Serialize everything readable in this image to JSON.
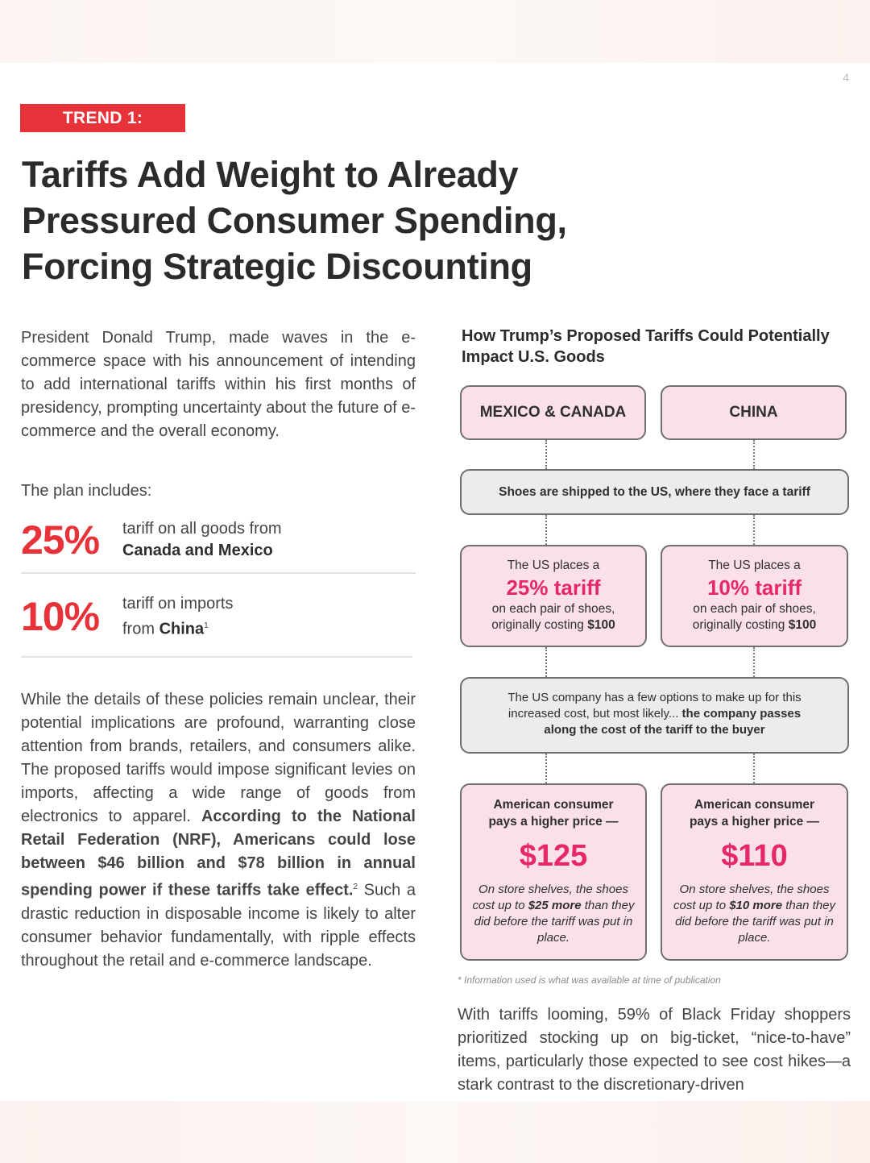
{
  "page_number": "4",
  "badge": "TREND 1:",
  "headline": {
    "line1": "Tariffs Add Weight to Already",
    "line2": "Pressured Consumer Spending,",
    "line3": "Forcing Strategic Discounting"
  },
  "intro": "President Donald Trump, made waves in the e-commerce space with his announcement of intending to add international tariffs within his first months of presidency, prompting uncertainty about the future of e-commerce and the overall economy.",
  "plan_label": "The plan includes:",
  "stats": [
    {
      "value": "25%",
      "text_plain": "tariff on all goods from",
      "text_bold": "Canada and Mexico"
    },
    {
      "value": "10%",
      "text_plain": "tariff on imports",
      "text_from": "from ",
      "text_bold": "China",
      "footnote_mark": "1"
    }
  ],
  "body": {
    "part1": "While the details of these policies remain unclear, their potential implications are profound, warranting close attention from brands, retailers, and consumers alike. The proposed tariffs would impose significant levies on imports, affecting a wide range of goods from electronics to apparel. ",
    "part_bold": "According to the National Retail Federation (NRF), Americans could lose between $46 billion and $78 billion in annual spending power if these tariffs take effect.",
    "footnote_mark": "2",
    "part2": " Such a drastic reduction in disposable income is likely to alter consumer behavior fundamentally, with ripple effects throughout the retail and e-commerce landscape."
  },
  "infographic": {
    "title": "How Trump’s Proposed Tariffs Could Potentially Impact U.S. Goods",
    "left_country": "MEXICO & CANADA",
    "right_country": "CHINA",
    "shipping": "Shoes are shipped to the US, where they face a tariff",
    "tariff_left": {
      "intro": "The US places a",
      "rate": "25% tariff",
      "line1": "on each pair of shoes,",
      "line2": "originally costing ",
      "amount": "$100"
    },
    "tariff_right": {
      "intro": "The US places a",
      "rate": "10% tariff",
      "line1": "on each pair of shoes,",
      "line2": "originally costing ",
      "amount": "$100"
    },
    "options": {
      "text1": "The US company has a few options to make up for this increased cost, but most likely... ",
      "bold": "the company passes along the cost of the tariff to the buyer"
    },
    "consumer_left": {
      "head1": "American consumer",
      "head2": "pays a higher price —",
      "price": "$125",
      "shelf1": "On store shelves, the shoes cost up to ",
      "shelf_bold": "$25 more",
      "shelf2": " than they did before the tariff was put in place."
    },
    "consumer_right": {
      "head1": "American consumer",
      "head2": "pays a higher price —",
      "price": "$110",
      "shelf1": "On store shelves, the shoes cost up to ",
      "shelf_bold": "$10 more",
      "shelf2": " than they did before the tariff was put in place."
    },
    "footnote": "* Information used is what was available at time of publication"
  },
  "closing": "With tariffs looming, 59% of Black Friday shoppers prioritized stocking up on big-ticket, “nice-to-have” items, particularly those expected to see cost hikes—a stark contrast to the discretionary-driven",
  "colors": {
    "accent_red": "#e8323a",
    "accent_pink": "#e6286a",
    "box_pink": "#fbe1e7",
    "box_gray": "#ececec"
  }
}
